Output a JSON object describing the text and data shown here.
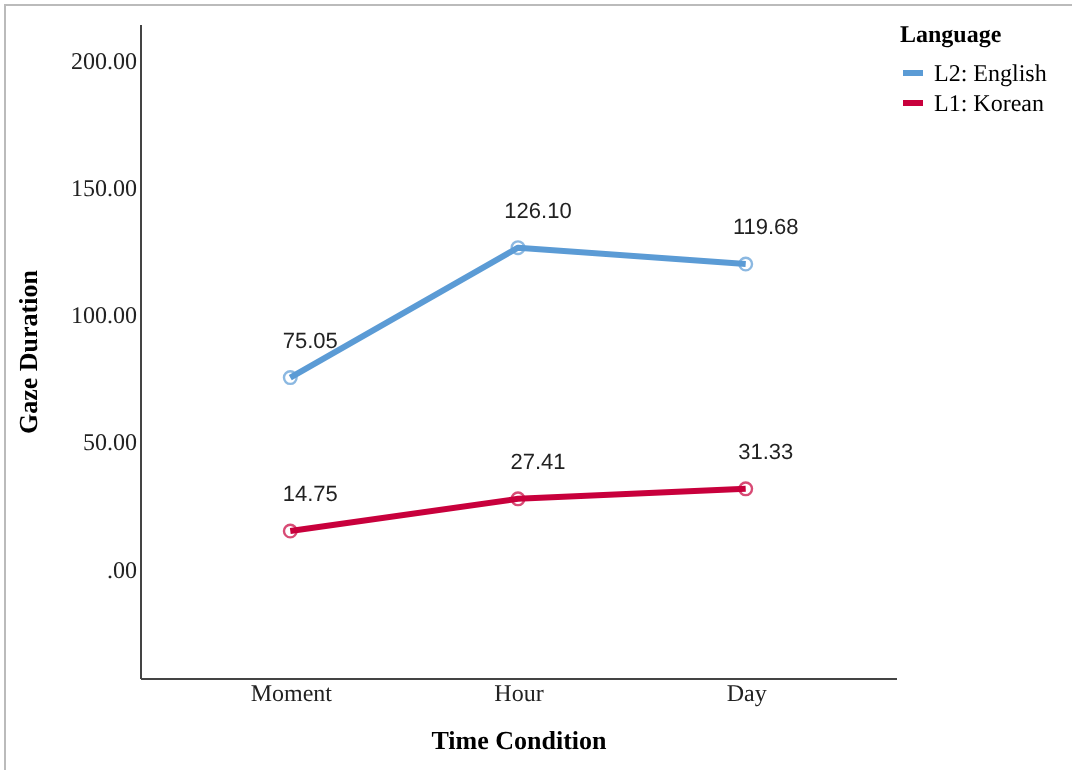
{
  "chart_data": {
    "type": "line",
    "xlabel": "Time Condition",
    "ylabel": "Gaze Duration",
    "legend_title": "Language",
    "categories": [
      "Moment",
      "Hour",
      "Day"
    ],
    "series": [
      {
        "name": "L2: English",
        "color": "#5b9bd5",
        "values": [
          75.05,
          126.1,
          119.68
        ],
        "value_labels": [
          "75.05",
          "126.10",
          "119.68"
        ]
      },
      {
        "name": "L1: Korean",
        "color": "#c8003c",
        "values": [
          14.75,
          27.41,
          31.33
        ],
        "value_labels": [
          "14.75",
          "27.41",
          "31.33"
        ]
      }
    ],
    "ylim": [
      -43,
      214
    ],
    "yticks": [
      {
        "value": 0,
        "label": ".00"
      },
      {
        "value": 50,
        "label": "50.00"
      },
      {
        "value": 100,
        "label": "100.00"
      },
      {
        "value": 150,
        "label": "150.00"
      },
      {
        "value": 200,
        "label": "200.00"
      }
    ],
    "grid": false,
    "legend": "top right",
    "marker": "circle",
    "line_style": "solid"
  }
}
